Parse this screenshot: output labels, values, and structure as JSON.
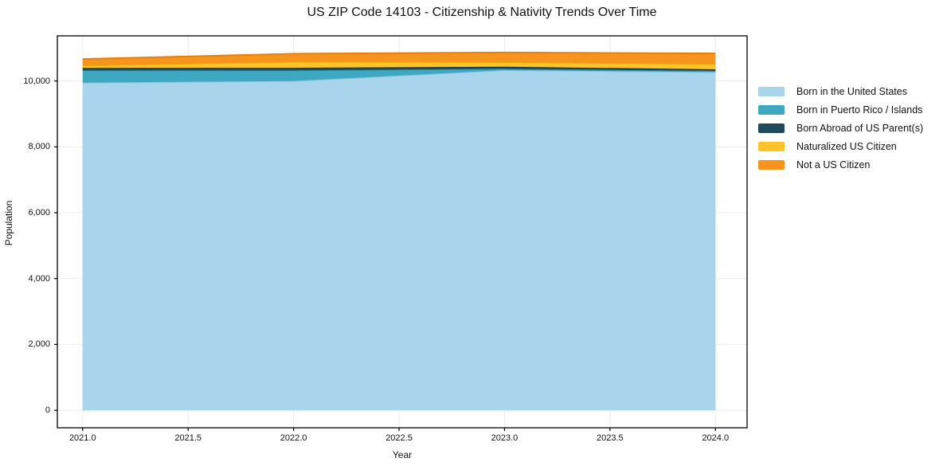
{
  "title": "US ZIP Code 14103 - Citizenship & Nativity Trends Over Time",
  "chart_data": {
    "type": "area",
    "stacked": true,
    "title": "US ZIP Code 14103 - Citizenship & Nativity Trends Over Time",
    "xlabel": "Year",
    "ylabel": "Population",
    "x": [
      2021,
      2022,
      2023,
      2024
    ],
    "series": [
      {
        "name": "Born in the United States",
        "values": [
          9950,
          10000,
          10330,
          10270
        ],
        "color": "#A8D5EB",
        "edge_color": "#85C2DE"
      },
      {
        "name": "Born in Puerto Rico / Islands",
        "values": [
          370,
          320,
          40,
          35
        ],
        "color": "#3FA8C1",
        "edge_color": "#2B93AB"
      },
      {
        "name": "Born Abroad of US Parent(s)",
        "values": [
          75,
          80,
          65,
          50
        ],
        "color": "#1F4A5C",
        "edge_color": "#153744"
      },
      {
        "name": "Naturalized US Citizen",
        "values": [
          75,
          185,
          140,
          160
        ],
        "color": "#FDC32B",
        "edge_color": "#EEA904"
      },
      {
        "name": "Not a US Citizen",
        "values": [
          195,
          240,
          290,
          320
        ],
        "color": "#F7941E",
        "edge_color": "#E5800C"
      }
    ],
    "x_ticks": [
      2021.0,
      2021.5,
      2022.0,
      2022.5,
      2023.0,
      2023.5,
      2024.0
    ],
    "x_tick_labels": [
      "2021.0",
      "2021.5",
      "2022.0",
      "2022.5",
      "2023.0",
      "2023.5",
      "2024.0"
    ],
    "y_ticks": [
      0,
      2000,
      4000,
      6000,
      8000,
      10000
    ],
    "y_tick_labels": [
      "0",
      "2,000",
      "4,000",
      "6,000",
      "8,000",
      "10,000"
    ],
    "xlim": [
      2020.88,
      2024.15
    ],
    "ylim": [
      -530,
      11370
    ],
    "grid": true,
    "grid_color": "#ececec",
    "frame_color": "#000000",
    "background_color": "#ffffff",
    "legend_position": "right"
  }
}
